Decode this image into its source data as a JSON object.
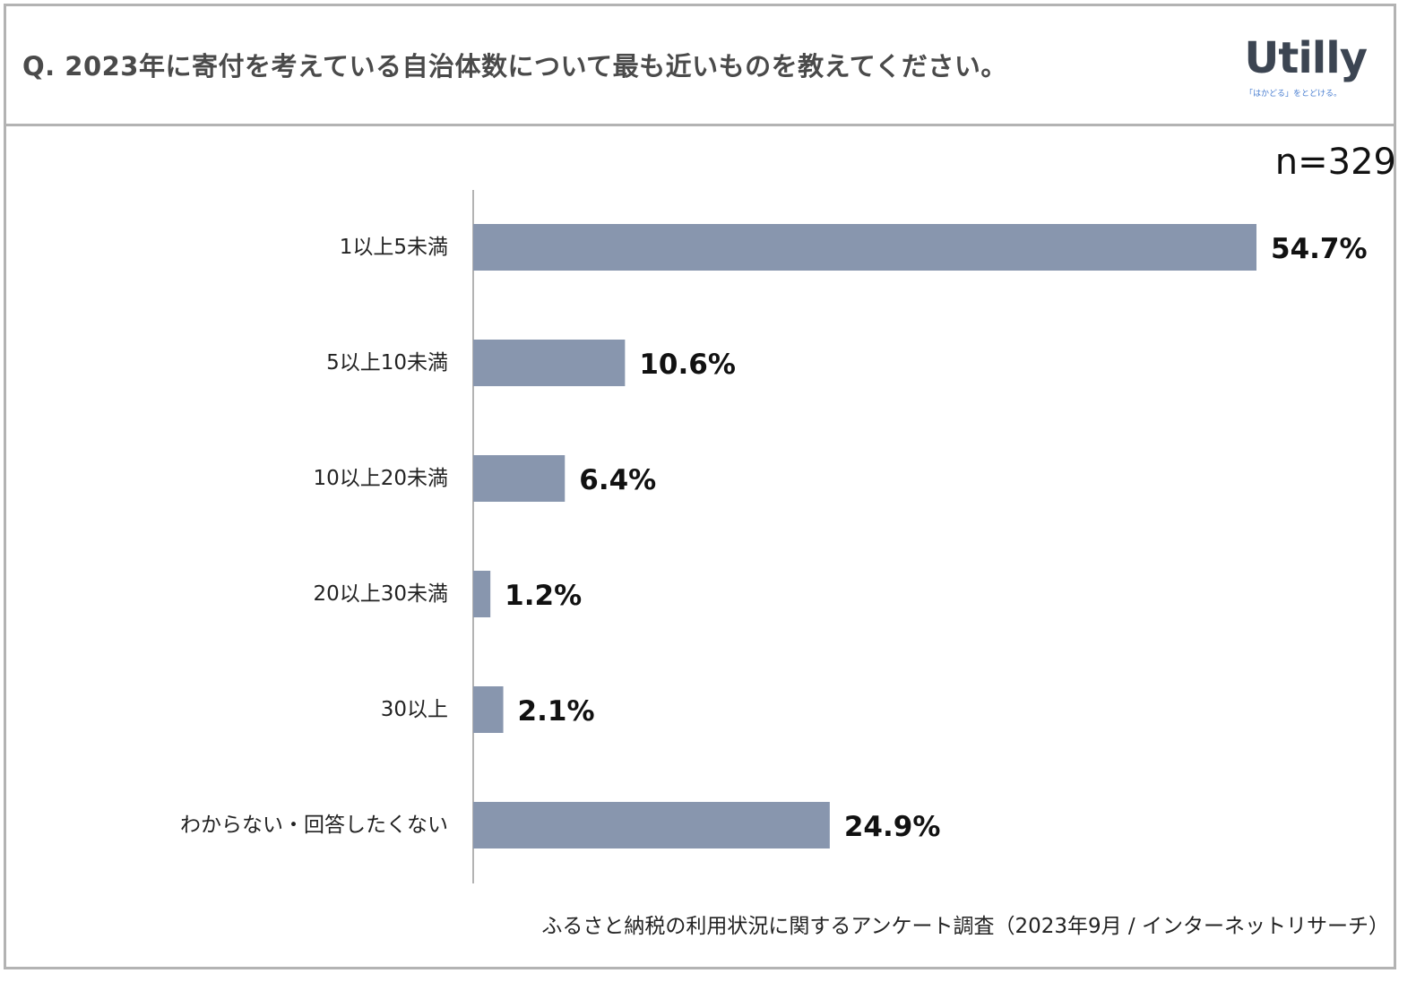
{
  "header": {
    "question": "Q. 2023年に寄付を考えている自治体数について最も近いものを教えてください。",
    "logo_word": "Utilly",
    "logo_tagline": "「はかどる」をとどける。"
  },
  "sample_size": "n=329",
  "chart_data": {
    "type": "bar",
    "orientation": "horizontal",
    "categories": [
      "1以上5未満",
      "5以上10未満",
      "10以上20未満",
      "20以上30未満",
      "30以上",
      "わからない・回答したくない"
    ],
    "values": [
      54.7,
      10.6,
      6.4,
      1.2,
      2.1,
      24.9
    ],
    "value_labels": [
      "54.7%",
      "10.6%",
      "6.4%",
      "1.2%",
      "2.1%",
      "24.9%"
    ],
    "unit": "%",
    "xlim": [
      0,
      54.7
    ],
    "bar_color": "#8896ae",
    "grid": false,
    "legend": "none"
  },
  "source": "ふるさと納税の利用状況に関するアンケート調査（2023年9月 / インターネットリサーチ）"
}
